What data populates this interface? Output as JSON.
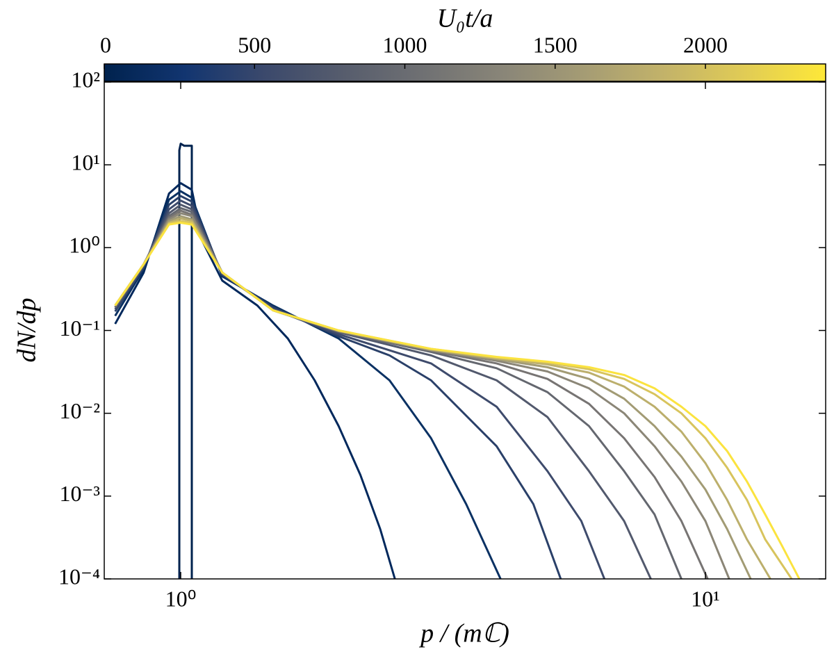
{
  "chart_data": {
    "type": "line",
    "xlabel": "p / (mℂ)",
    "ylabel": "dN/dp",
    "xscale": "log",
    "yscale": "log",
    "xlim": [
      0.715,
      16.95
    ],
    "ylim": [
      0.0001,
      100
    ],
    "xticks": [
      {
        "value": 1,
        "label": "10⁰"
      },
      {
        "value": 10,
        "label": "10¹"
      }
    ],
    "yticks": [
      {
        "value": 0.0001,
        "label": "10⁻⁴"
      },
      {
        "value": 0.001,
        "label": "10⁻³"
      },
      {
        "value": 0.01,
        "label": "10⁻²"
      },
      {
        "value": 0.1,
        "label": "10⁻¹"
      },
      {
        "value": 1,
        "label": "10⁰"
      },
      {
        "value": 10,
        "label": "10¹"
      },
      {
        "value": 100,
        "label": "10²"
      }
    ],
    "colorbar": {
      "label": "U₀t/a",
      "lim": [
        0,
        2400
      ],
      "ticks": [
        0,
        500,
        1000,
        1500,
        2000
      ],
      "colors": [
        "#00224e",
        "#123570",
        "#3b496c",
        "#575d6d",
        "#707173",
        "#8a8678",
        "#a59c74",
        "#c3b369",
        "#e1cc55",
        "#fee838"
      ]
    },
    "series": [
      {
        "color": "#00224e",
        "x": [
          0.994,
          0.994,
          1.0,
          1.015,
          1.05,
          1.05
        ],
        "values": [
          0.0001,
          15,
          18,
          17,
          17,
          0.0001
        ]
      },
      {
        "color": "#00285c",
        "x": [
          0.75,
          0.85,
          0.95,
          1.0,
          1.05,
          1.1,
          1.2,
          1.4,
          1.6,
          1.8,
          2.0,
          2.2,
          2.4,
          2.56
        ],
        "values": [
          0.12,
          0.5,
          4.5,
          6,
          5,
          1.2,
          0.4,
          0.2,
          0.08,
          0.025,
          0.007,
          0.0018,
          0.0004,
          0.0001
        ]
      },
      {
        "color": "#0a3163",
        "x": [
          0.75,
          0.85,
          0.95,
          1.0,
          1.05,
          1.2,
          1.5,
          2,
          2.5,
          3,
          3.5,
          4.07
        ],
        "values": [
          0.15,
          0.55,
          3.8,
          4.8,
          4,
          0.45,
          0.2,
          0.08,
          0.025,
          0.005,
          0.0008,
          0.0001
        ]
      },
      {
        "color": "#2a4069",
        "x": [
          0.75,
          0.85,
          0.95,
          1.0,
          1.05,
          1.2,
          1.5,
          2,
          2.5,
          3,
          4,
          4.7,
          5.3
        ],
        "values": [
          0.17,
          0.58,
          3.3,
          4.2,
          3.6,
          0.47,
          0.19,
          0.085,
          0.05,
          0.025,
          0.004,
          0.0008,
          0.0001
        ]
      },
      {
        "color": "#3e4b6c",
        "x": [
          0.75,
          0.85,
          0.95,
          1.0,
          1.05,
          1.2,
          1.5,
          2,
          3,
          4,
          5,
          5.8,
          6.42
        ],
        "values": [
          0.18,
          0.6,
          2.9,
          3.7,
          3.2,
          0.48,
          0.18,
          0.09,
          0.04,
          0.012,
          0.002,
          0.0005,
          0.0001
        ]
      },
      {
        "color": "#52596d",
        "x": [
          0.75,
          0.85,
          0.95,
          1.0,
          1.05,
          1.2,
          1.5,
          2,
          3,
          4,
          5,
          6,
          7,
          7.87
        ],
        "values": [
          0.19,
          0.62,
          2.6,
          3.3,
          2.9,
          0.49,
          0.18,
          0.095,
          0.05,
          0.025,
          0.009,
          0.002,
          0.0005,
          0.0001
        ]
      },
      {
        "color": "#64676f",
        "x": [
          0.75,
          0.85,
          0.95,
          1.0,
          1.05,
          1.2,
          1.5,
          2,
          3,
          4,
          5,
          6,
          7,
          8,
          9
        ],
        "values": [
          0.19,
          0.63,
          2.4,
          3.0,
          2.7,
          0.5,
          0.175,
          0.097,
          0.055,
          0.035,
          0.018,
          0.007,
          0.002,
          0.0006,
          0.0001
        ]
      },
      {
        "color": "#777473",
        "x": [
          0.75,
          0.85,
          0.95,
          1.0,
          1.05,
          1.2,
          1.5,
          2,
          3,
          4,
          5,
          6,
          7,
          8,
          9,
          10.1
        ],
        "values": [
          0.2,
          0.63,
          2.3,
          2.8,
          2.5,
          0.5,
          0.175,
          0.098,
          0.057,
          0.04,
          0.026,
          0.013,
          0.005,
          0.0017,
          0.0005,
          0.0001
        ]
      },
      {
        "color": "#8b8677",
        "x": [
          0.75,
          0.85,
          0.95,
          1.0,
          1.05,
          1.2,
          1.5,
          2,
          3,
          4,
          5,
          6,
          7,
          8,
          9,
          10,
          11.1
        ],
        "values": [
          0.2,
          0.63,
          2.2,
          2.6,
          2.4,
          0.5,
          0.175,
          0.098,
          0.058,
          0.043,
          0.032,
          0.02,
          0.01,
          0.004,
          0.0015,
          0.0005,
          0.0001
        ]
      },
      {
        "color": "#a29b74",
        "x": [
          0.75,
          0.85,
          0.95,
          1.0,
          1.05,
          1.2,
          1.5,
          2,
          3,
          4,
          5,
          6,
          7,
          8,
          9,
          10,
          11,
          12.2
        ],
        "values": [
          0.2,
          0.63,
          2.1,
          2.4,
          2.2,
          0.5,
          0.175,
          0.099,
          0.058,
          0.045,
          0.036,
          0.026,
          0.015,
          0.007,
          0.003,
          0.0012,
          0.0004,
          0.0001
        ]
      },
      {
        "color": "#bcaf6c",
        "x": [
          0.75,
          0.85,
          0.95,
          1.0,
          1.05,
          1.2,
          1.5,
          2,
          3,
          4,
          5,
          6,
          7,
          8,
          9,
          10,
          11,
          12,
          13.3
        ],
        "values": [
          0.2,
          0.63,
          2.0,
          2.25,
          2.1,
          0.5,
          0.175,
          0.1,
          0.059,
          0.046,
          0.039,
          0.031,
          0.021,
          0.012,
          0.006,
          0.0025,
          0.0009,
          0.0003,
          0.0001
        ]
      },
      {
        "color": "#d8c45d",
        "x": [
          0.75,
          0.85,
          0.95,
          1.0,
          1.05,
          1.2,
          1.5,
          2,
          3,
          4,
          5,
          6,
          7,
          8,
          9,
          10,
          11,
          12,
          13,
          14.6
        ],
        "values": [
          0.2,
          0.63,
          1.95,
          2.1,
          2.0,
          0.5,
          0.175,
          0.1,
          0.06,
          0.047,
          0.041,
          0.034,
          0.026,
          0.017,
          0.01,
          0.005,
          0.0022,
          0.0009,
          0.0003,
          0.0001
        ]
      },
      {
        "color": "#fbe33f",
        "x": [
          0.75,
          0.85,
          0.95,
          1.0,
          1.05,
          1.2,
          1.5,
          2,
          3,
          4,
          5,
          6,
          7,
          8,
          9,
          10,
          11,
          12,
          13,
          14,
          15.1
        ],
        "values": [
          0.2,
          0.63,
          1.9,
          2.0,
          1.9,
          0.5,
          0.175,
          0.1,
          0.06,
          0.048,
          0.042,
          0.036,
          0.029,
          0.02,
          0.012,
          0.007,
          0.0035,
          0.0015,
          0.0006,
          0.00025,
          0.0001
        ]
      }
    ]
  }
}
